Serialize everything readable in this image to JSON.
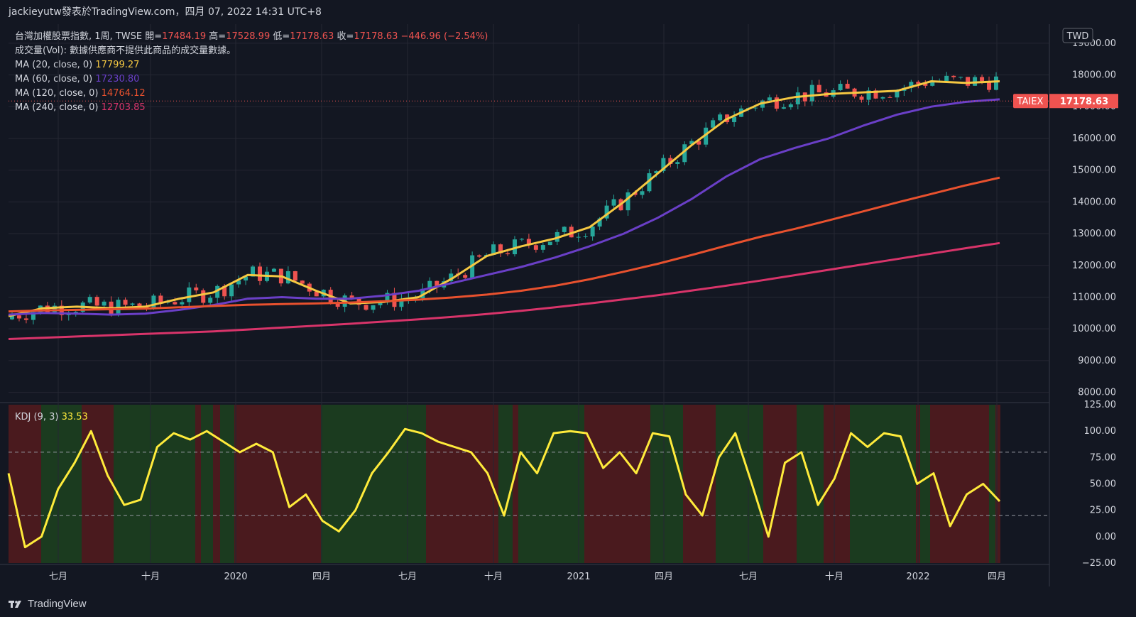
{
  "header": {
    "title": "jackieyutw發表於TradingView.com，四月 07, 2022 14:31 UTC+8"
  },
  "footer": {
    "brand": "TradingView"
  },
  "legend": {
    "symbol": "台灣加權股票指數, 1周, TWSE",
    "open_label": "開=",
    "open": "17484.19",
    "high_label": "高=",
    "high": "17528.99",
    "low_label": "低=",
    "low": "17178.63",
    "close_label": "收=",
    "close": "17178.63",
    "change": "−446.96 (−2.54%)",
    "vol_text": "成交量(Vol): 數據供應商不提供此商品的成交量數據。",
    "ma": [
      {
        "label": "MA (20, close, 0)",
        "value": "17799.27",
        "color": "#f5c842"
      },
      {
        "label": "MA (60, close, 0)",
        "value": "17230.80",
        "color": "#6a3fc7"
      },
      {
        "label": "MA (120, close, 0)",
        "value": "14764.12",
        "color": "#e8512e"
      },
      {
        "label": "MA (240, close, 0)",
        "value": "12703.85",
        "color": "#d8346a"
      }
    ],
    "kdj_label": "KDJ (9, 3)",
    "kdj_value": "33.53"
  },
  "price_axis": {
    "currency": "TWD",
    "ticks": [
      "19000.00",
      "18000.00",
      "17000.00",
      "16000.00",
      "15000.00",
      "14000.00",
      "13000.00",
      "12000.00",
      "11000.00",
      "10000.00",
      "9000.00",
      "8000.00"
    ],
    "badge_symbol": "TAIEX",
    "badge_price": "17178.63"
  },
  "kdj_axis": {
    "ticks": [
      "125.00",
      "100.00",
      "75.00",
      "50.00",
      "25.00",
      "0.00",
      "−25.00"
    ]
  },
  "time_axis": [
    "七月",
    "十月",
    "2020",
    "四月",
    "七月",
    "十月",
    "2021",
    "四月",
    "七月",
    "十月",
    "2022",
    "四月"
  ],
  "colors": {
    "up": "#26a69a",
    "down": "#ef5350",
    "bg": "#131722",
    "grid": "#242733",
    "kdj": "#ffeb3b",
    "bg_green": "#1b3b1f",
    "bg_red": "#4a1a1e"
  },
  "chart_data": [
    {
      "type": "line",
      "title": "台灣加權股票指數, 1周, TWSE",
      "ylim": [
        7700,
        19600
      ],
      "x_ticks": [
        "七月",
        "十月",
        "2020",
        "四月",
        "七月",
        "十月",
        "2021",
        "四月",
        "七月",
        "十月",
        "2022",
        "四月"
      ],
      "series": [
        {
          "name": "MA (20, close, 0)",
          "color": "#f5c842",
          "values": [
            10400,
            10650,
            10700,
            10650,
            10700,
            10950,
            11150,
            11700,
            11650,
            11200,
            10800,
            10850,
            11000,
            11600,
            12300,
            12600,
            12850,
            13200,
            14000,
            14900,
            15800,
            16600,
            17100,
            17300,
            17400,
            17450,
            17500,
            17800,
            17750,
            17799.27
          ]
        },
        {
          "name": "MA (60, close, 0)",
          "color": "#6a3fc7",
          "values": [
            10450,
            10500,
            10480,
            10450,
            10480,
            10600,
            10750,
            10950,
            11000,
            10950,
            10950,
            11050,
            11200,
            11450,
            11700,
            11950,
            12250,
            12600,
            13000,
            13500,
            14100,
            14800,
            15350,
            15700,
            16000,
            16400,
            16750,
            17000,
            17150,
            17230.8
          ]
        },
        {
          "name": "MA (120, close, 0)",
          "color": "#e8512e",
          "values": [
            10550,
            10580,
            10600,
            10620,
            10640,
            10680,
            10720,
            10760,
            10780,
            10800,
            10830,
            10870,
            10920,
            10990,
            11080,
            11200,
            11360,
            11560,
            11800,
            12050,
            12330,
            12620,
            12900,
            13150,
            13420,
            13700,
            13980,
            14250,
            14520,
            14764.12
          ]
        },
        {
          "name": "MA (240, close, 0)",
          "color": "#d8346a",
          "values": [
            9680,
            9720,
            9760,
            9800,
            9840,
            9880,
            9920,
            9980,
            10040,
            10100,
            10160,
            10230,
            10300,
            10380,
            10470,
            10570,
            10680,
            10800,
            10930,
            11060,
            11210,
            11360,
            11520,
            11690,
            11860,
            12030,
            12200,
            12370,
            12540,
            12703.85
          ]
        }
      ]
    },
    {
      "type": "line",
      "title": "KDJ (9, 3)",
      "ylim": [
        -25,
        125
      ],
      "series": [
        {
          "name": "KDJ (9, 3)",
          "color": "#ffeb3b",
          "values": [
            60,
            -10,
            0,
            45,
            70,
            100,
            58,
            30,
            35,
            85,
            98,
            92,
            100,
            90,
            80,
            88,
            80,
            28,
            40,
            15,
            5,
            25,
            60,
            80,
            102,
            98,
            90,
            85,
            80,
            60,
            20,
            80,
            60,
            98,
            100,
            98,
            65,
            80,
            60,
            98,
            95,
            40,
            20,
            75,
            98,
            50,
            0,
            70,
            80,
            30,
            55,
            98,
            85,
            98,
            95,
            50,
            60,
            10,
            40,
            50,
            33.53
          ]
        }
      ]
    }
  ]
}
